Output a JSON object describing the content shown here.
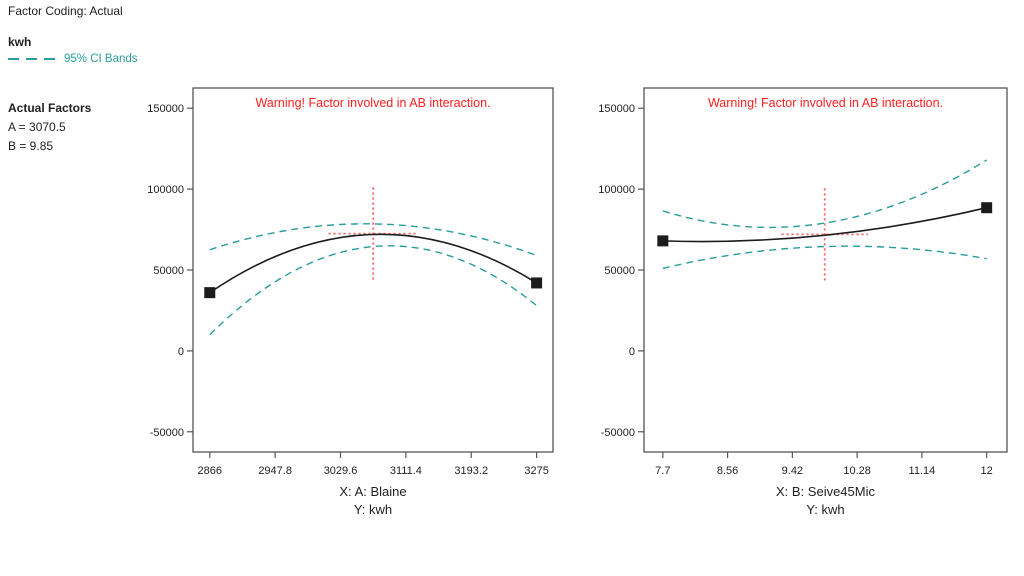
{
  "header": {
    "factor_coding": "Factor Coding: Actual",
    "response_name": "kwh",
    "ci_legend": "95% CI Bands",
    "actual_factors_title": "Actual Factors",
    "factor_a": "A = 3070.5",
    "factor_b": "B = 9.85"
  },
  "colors": {
    "ci_band": "#2a9c9c",
    "warning": "#ff2020",
    "crosshair": "#f96a6a",
    "curve": "#1c1c1c",
    "frame": "#555555",
    "text": "#1f1f1f"
  },
  "chart_data": [
    {
      "type": "line",
      "id": "blaine-effect-plot",
      "warning": "Warning! Factor involved in AB interaction.",
      "xlabel": "X: A: Blaine",
      "ylabel": "Y: kwh",
      "xlim": [
        2845,
        3295.5
      ],
      "ylim": [
        -62500,
        162500
      ],
      "x_ticks": [
        2866,
        2947.8,
        3029.6,
        3111.4,
        3193.2,
        3275
      ],
      "x_tick_labels": [
        "2866",
        "2947.8",
        "3029.6",
        "3111.4",
        "3193.2",
        "3275"
      ],
      "y_ticks": [
        150000,
        100000,
        50000,
        0,
        -50000
      ],
      "y_tick_labels": [
        "150000",
        "100000",
        "50000",
        "0",
        "-50000"
      ],
      "grid": false,
      "series": [
        {
          "name": "ci-upper",
          "label": "95% CI upper band",
          "style": "dashed",
          "color_key": "ci_band",
          "x": [
            2866,
            3070.5,
            3275
          ],
          "y": [
            62500,
            78500,
            59000
          ]
        },
        {
          "name": "ci-lower",
          "label": "95% CI lower band",
          "style": "dashed",
          "color_key": "ci_band",
          "x": [
            2866,
            3070.5,
            3275
          ],
          "y": [
            10000,
            64500,
            28000
          ]
        },
        {
          "name": "mean",
          "label": "predicted kwh",
          "style": "solid",
          "color_key": "curve",
          "x": [
            2866,
            3070.5,
            3275
          ],
          "y": [
            36000,
            72000,
            42000
          ]
        }
      ],
      "design_points": [
        {
          "x": 2866,
          "y": 36000
        },
        {
          "x": 3275,
          "y": 42000
        }
      ],
      "crosshair": {
        "x": 3070.5,
        "y": 72500,
        "x_half_span": 56,
        "y_half_span": 28500
      }
    },
    {
      "type": "line",
      "id": "seive45mic-effect-plot",
      "warning": "Warning! Factor involved in AB interaction.",
      "xlabel": "X: B: Seive45Mic",
      "ylabel": "Y: kwh",
      "xlim": [
        7.45,
        12.27
      ],
      "ylim": [
        -62500,
        162500
      ],
      "x_ticks": [
        7.7,
        8.56,
        9.42,
        10.28,
        11.14,
        12
      ],
      "x_tick_labels": [
        "7.7",
        "8.56",
        "9.42",
        "10.28",
        "11.14",
        "12"
      ],
      "y_ticks": [
        150000,
        100000,
        50000,
        0,
        -50000
      ],
      "y_tick_labels": [
        "150000",
        "100000",
        "50000",
        "0",
        "-50000"
      ],
      "grid": false,
      "series": [
        {
          "name": "ci-upper",
          "label": "95% CI upper band",
          "style": "dashed",
          "color_key": "ci_band",
          "x": [
            7.7,
            9.85,
            12
          ],
          "y": [
            86500,
            79000,
            118000
          ]
        },
        {
          "name": "ci-lower",
          "label": "95% CI lower band",
          "style": "dashed",
          "color_key": "ci_band",
          "x": [
            7.7,
            9.85,
            12
          ],
          "y": [
            51000,
            64500,
            57000
          ]
        },
        {
          "name": "mean",
          "label": "predicted kwh",
          "style": "solid",
          "color_key": "curve",
          "x": [
            7.7,
            9.85,
            12
          ],
          "y": [
            68000,
            71500,
            88500
          ]
        }
      ],
      "design_points": [
        {
          "x": 7.7,
          "y": 68000
        },
        {
          "x": 12,
          "y": 88500
        }
      ],
      "crosshair": {
        "x": 9.85,
        "y": 72000,
        "x_half_span": 0.575,
        "y_half_span": 28500
      }
    }
  ]
}
